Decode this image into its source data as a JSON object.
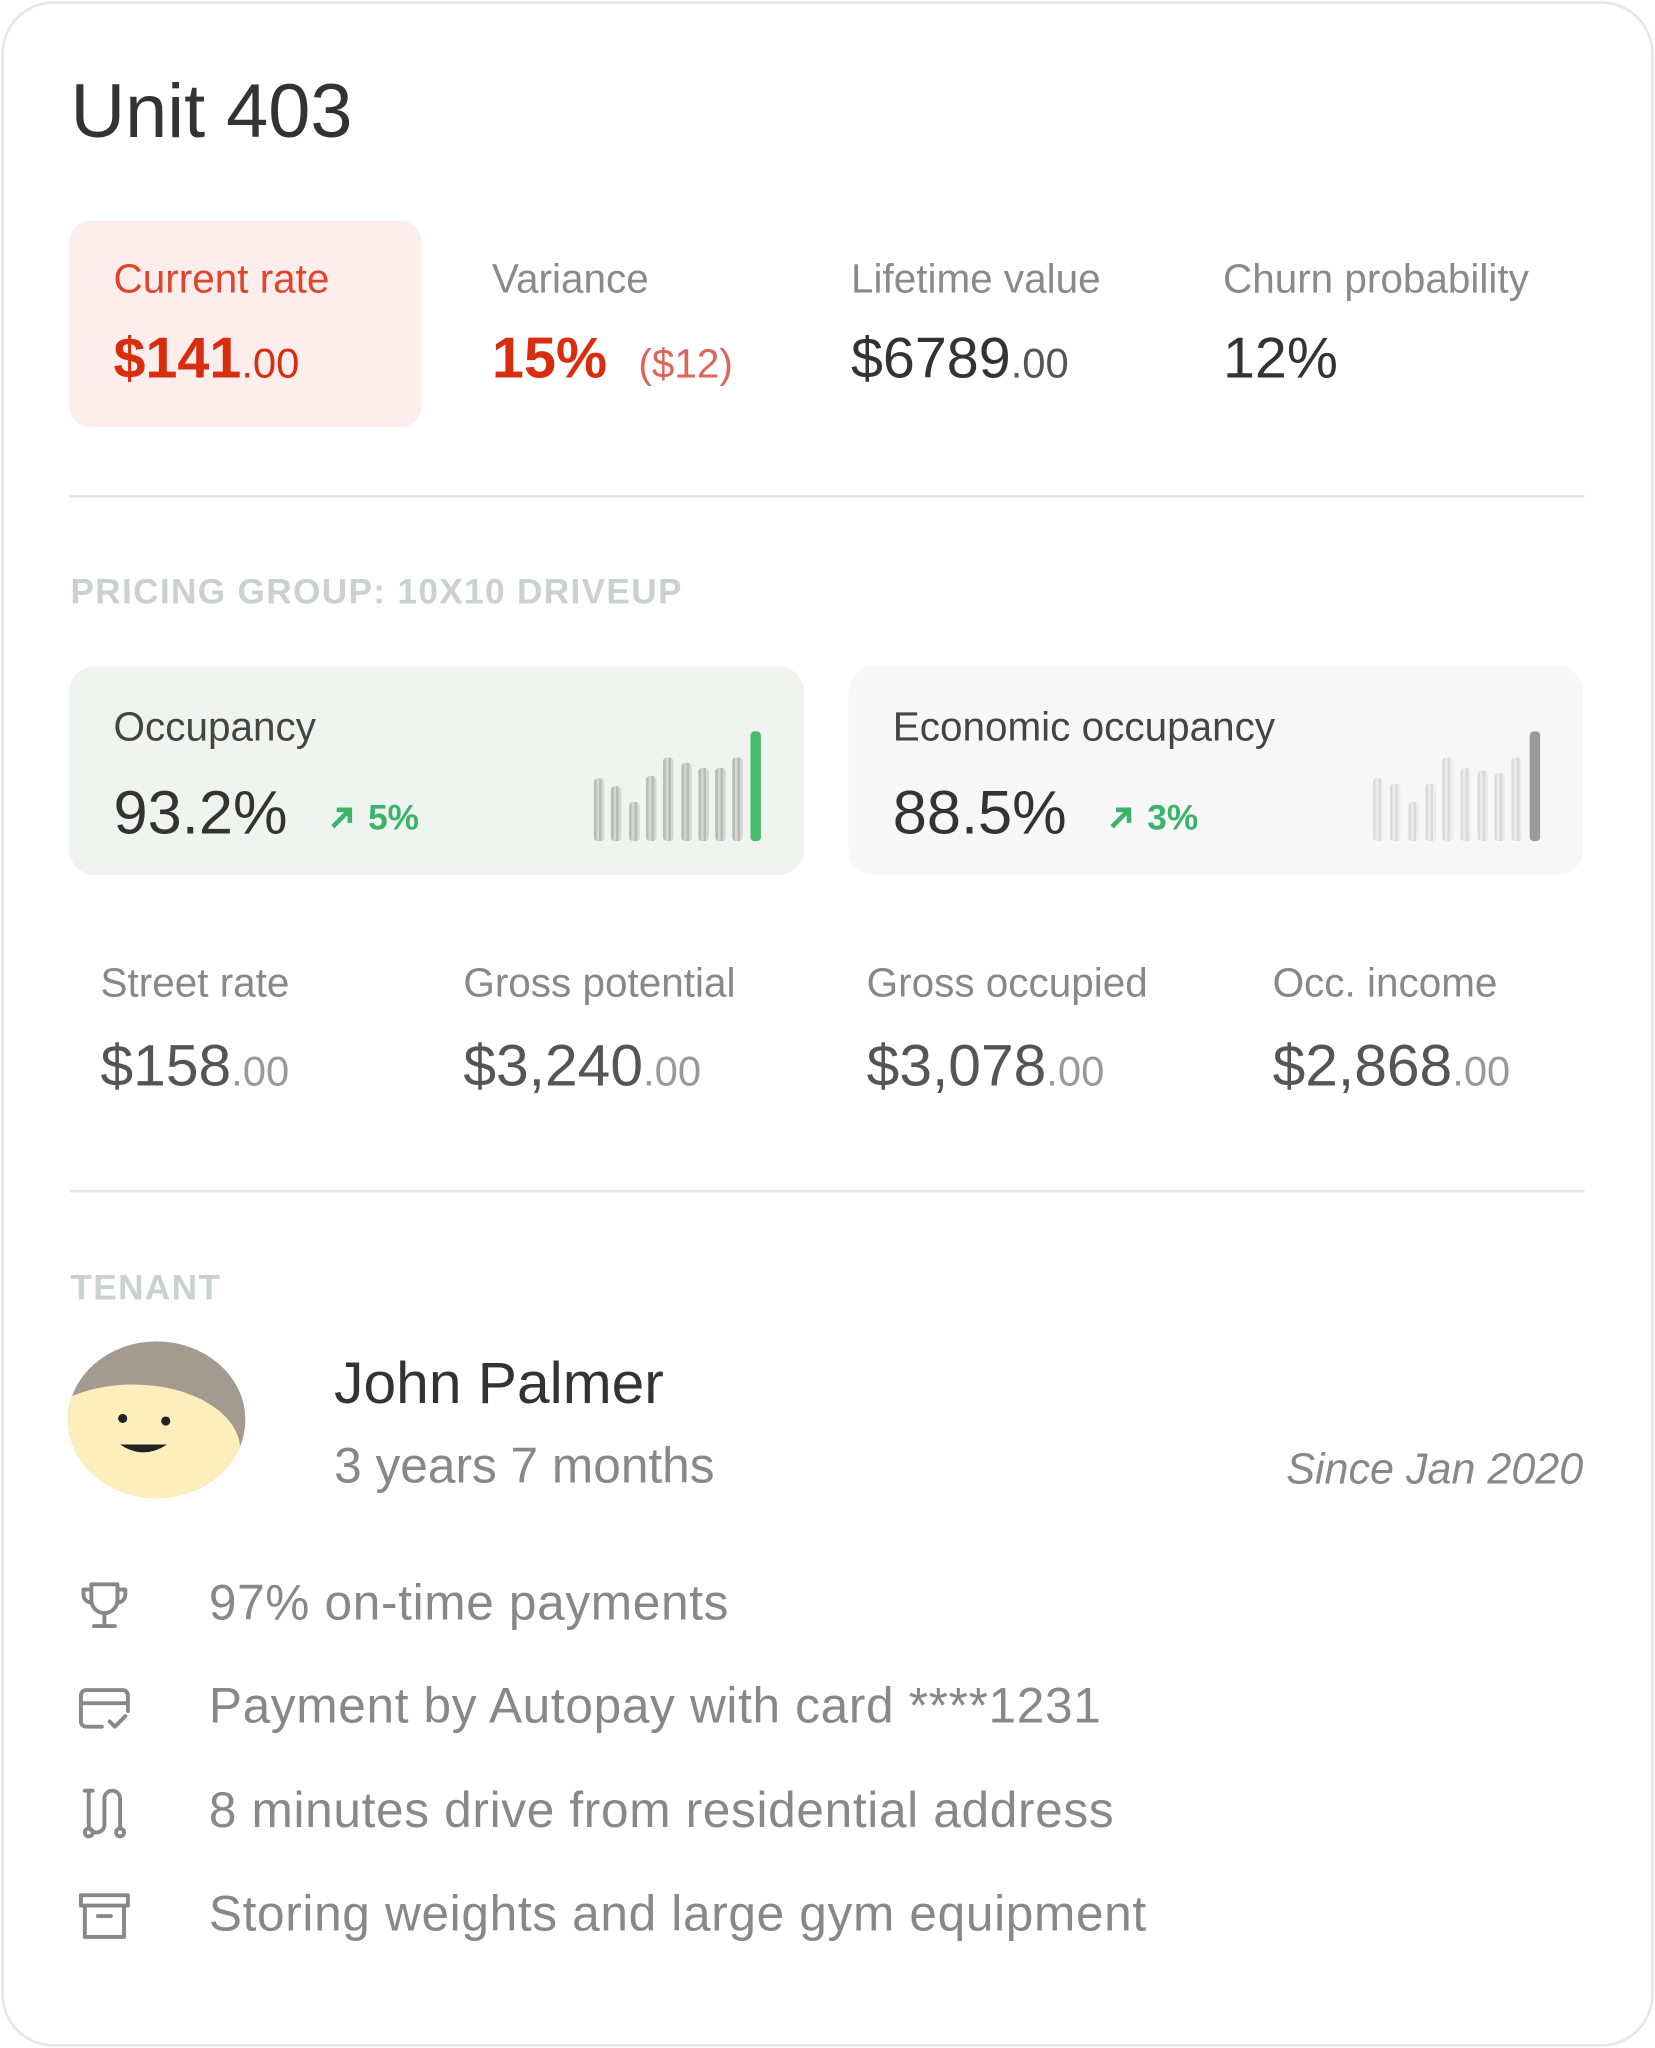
{
  "title": "Unit 403",
  "summary": [
    {
      "label": "Current rate",
      "value": "$141",
      "cents": ".00"
    },
    {
      "label": "Variance",
      "value": "15%",
      "note": "($12)"
    },
    {
      "label": "Lifetime value",
      "value": "$6789",
      "cents": ".00"
    },
    {
      "label": "Churn probability",
      "value": "12%"
    }
  ],
  "pricing_group": {
    "heading": "PRICING GROUP: 10X10 DRIVEUP",
    "cards": [
      {
        "label": "Occupancy",
        "value": "93.2%",
        "change": "5%",
        "sparkline": [
          48,
          42,
          30,
          50,
          64,
          60,
          56,
          56,
          64,
          84
        ]
      },
      {
        "label": "Economic occupancy",
        "value": "88.5%",
        "change": "3%",
        "sparkline": [
          48,
          44,
          30,
          44,
          64,
          56,
          54,
          52,
          64,
          84
        ]
      }
    ],
    "metrics": [
      {
        "label": "Street rate",
        "value": "$158",
        "cents": ".00"
      },
      {
        "label": "Gross potential",
        "value": "$3,240",
        "cents": ".00"
      },
      {
        "label": "Gross occupied",
        "value": "$3,078",
        "cents": ".00"
      },
      {
        "label": "Occ. income",
        "value": "$2,868",
        "cents": ".00"
      }
    ]
  },
  "tenant": {
    "heading": "TENANT",
    "name": "John Palmer",
    "tenure": "3 years 7 months",
    "since": "Since Jan 2020",
    "facts": [
      "97% on-time payments",
      "Payment by Autopay with card ****1231",
      "8 minutes drive from residential address",
      "Storing weights and large gym equipment"
    ]
  }
}
